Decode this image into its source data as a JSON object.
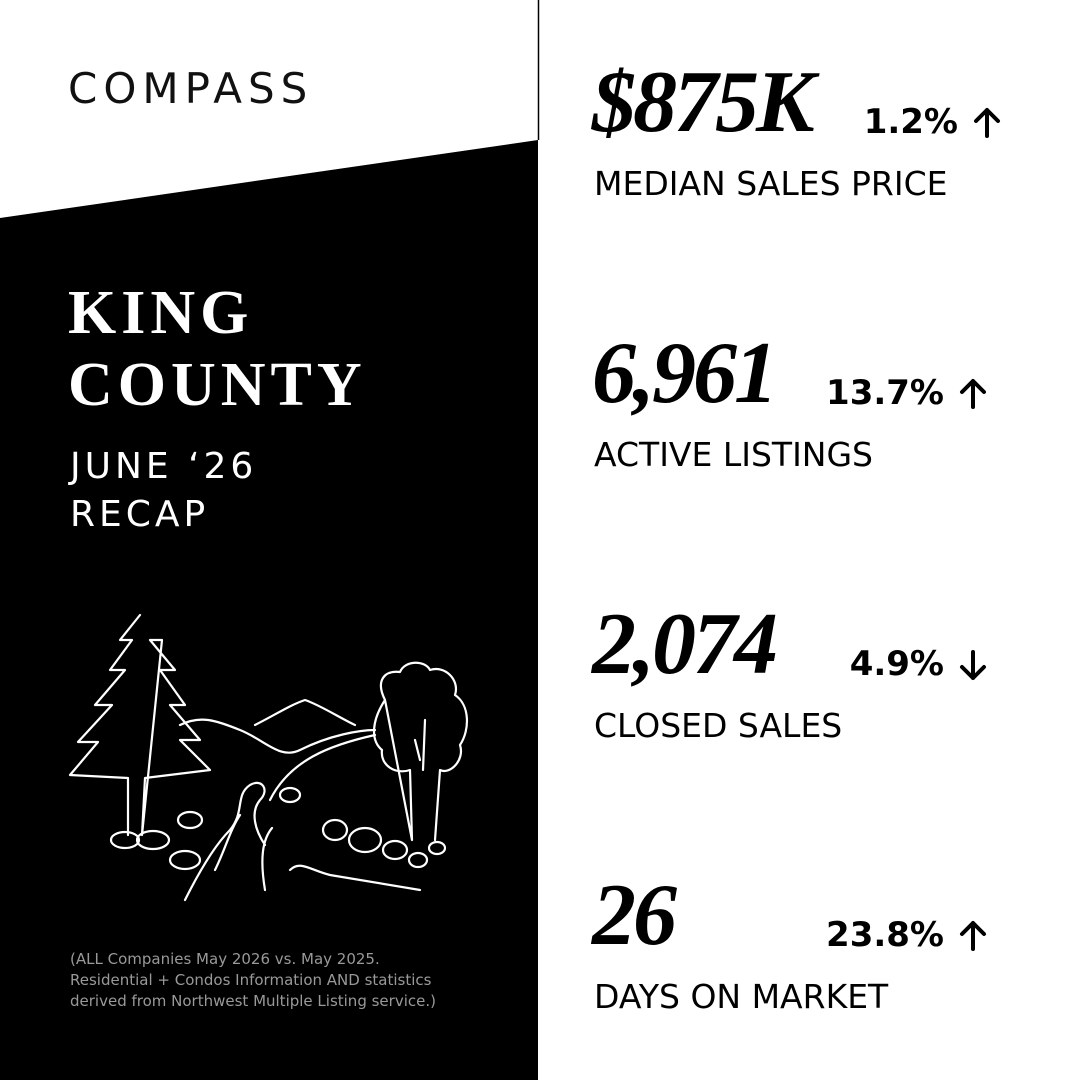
{
  "brand": "COMPASS",
  "title": [
    "KING",
    "COUNTY"
  ],
  "subtitle": [
    "JUNE ‘26",
    "RECAP"
  ],
  "footnote": [
    "(ALL Companies May 2026 vs. May 2025.",
    "Residential + Condos Information AND statistics",
    "derived from Northwest Multiple Listing service.)"
  ],
  "stats": [
    {
      "value": "$875K",
      "label": "MEDIAN SALES PRICE",
      "change": "1.2%",
      "direction": "up"
    },
    {
      "value": "6,961",
      "label": "ACTIVE LISTINGS",
      "change": "13.7%",
      "direction": "up"
    },
    {
      "value": "2,074",
      "label": "CLOSED SALES",
      "change": "4.9%",
      "direction": "down"
    },
    {
      "value": "26",
      "label": "DAYS ON MARKET",
      "change": "23.8%",
      "direction": "up"
    }
  ]
}
